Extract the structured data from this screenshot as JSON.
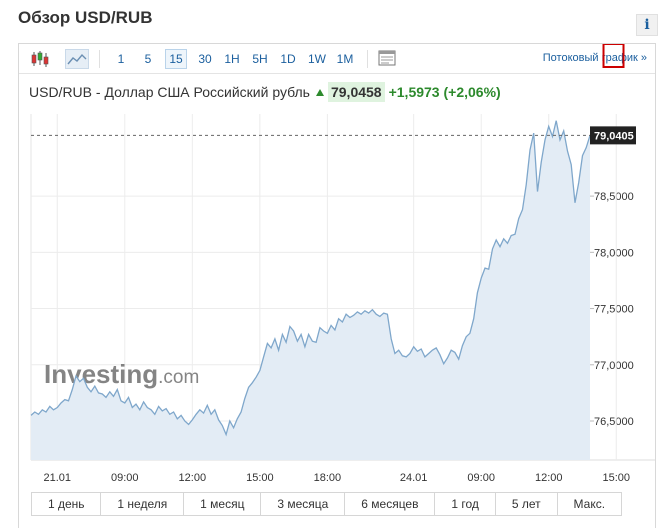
{
  "header": {
    "title": "Обзор USD/RUB"
  },
  "toolbar": {
    "intervals": [
      "1",
      "5",
      "15",
      "30",
      "1H",
      "5H",
      "1D",
      "1W",
      "1M"
    ],
    "active_interval": "15",
    "stream_link": "Потоковый график »"
  },
  "quote": {
    "name": "USD/RUB - Доллар США Российский рубль",
    "price": "79,0458",
    "change": "+1,5973 (+2,06%)"
  },
  "watermark": {
    "brand": "Investing",
    "suffix": ".com"
  },
  "ranges": [
    "1 день",
    "1 неделя",
    "1 месяц",
    "3 месяца",
    "6 месяцев",
    "1 год",
    "5 лет",
    "Макс."
  ],
  "colors": {
    "line": "#7fa7cb",
    "fill": "#e3ecf5",
    "accent_green": "#2d8a2d",
    "link": "#1b5f9e",
    "marker": "#cc0000"
  },
  "chart_data": {
    "type": "area",
    "title": "",
    "xlabel": "",
    "ylabel": "",
    "y_ticks": [
      "76,5000",
      "77,0000",
      "77,5000",
      "78,0000",
      "78,5000"
    ],
    "ylim": [
      76.26,
      79.23
    ],
    "x_ticks": [
      "21.01",
      "09:00",
      "12:00",
      "15:00",
      "18:00",
      "24.01",
      "09:00",
      "12:00",
      "15:00"
    ],
    "x_tick_index": [
      7,
      25,
      43,
      61,
      79,
      102,
      120,
      138,
      156
    ],
    "grid": true,
    "last_value_label": "79,0405",
    "last_value": 79.04,
    "highlight_index": 155,
    "values": [
      76.55,
      76.58,
      76.56,
      76.6,
      76.58,
      76.63,
      76.6,
      76.62,
      76.66,
      76.69,
      76.68,
      76.78,
      76.9,
      76.85,
      76.88,
      76.8,
      76.76,
      76.81,
      76.75,
      76.74,
      76.71,
      76.76,
      76.72,
      76.78,
      76.68,
      76.66,
      76.71,
      76.62,
      76.65,
      76.6,
      76.67,
      76.62,
      76.6,
      76.56,
      76.63,
      76.59,
      76.61,
      76.56,
      76.58,
      76.52,
      76.55,
      76.5,
      76.47,
      76.51,
      76.56,
      76.6,
      76.57,
      76.64,
      76.56,
      76.6,
      76.51,
      76.46,
      76.38,
      76.5,
      76.44,
      76.52,
      76.58,
      76.7,
      76.8,
      76.84,
      76.89,
      76.95,
      77.07,
      77.19,
      77.15,
      77.23,
      77.13,
      77.27,
      77.2,
      77.34,
      77.3,
      77.21,
      77.27,
      77.16,
      77.27,
      77.21,
      77.2,
      77.33,
      77.3,
      77.28,
      77.35,
      77.31,
      77.41,
      77.38,
      77.45,
      77.42,
      77.44,
      77.47,
      77.45,
      77.48,
      77.46,
      77.49,
      77.45,
      77.43,
      77.46,
      77.45,
      77.23,
      77.1,
      77.13,
      77.08,
      77.07,
      77.1,
      77.16,
      77.12,
      77.14,
      77.07,
      77.1,
      77.13,
      77.15,
      77.09,
      77.01,
      77.06,
      77.13,
      77.11,
      77.05,
      77.17,
      77.25,
      77.28,
      77.41,
      77.64,
      77.77,
      77.86,
      77.85,
      78.03,
      78.11,
      78.05,
      78.12,
      78.08,
      78.15,
      78.16,
      78.3,
      78.38,
      78.6,
      78.91,
      79.06,
      78.54,
      78.8,
      79.0,
      79.12,
      79.03,
      79.17,
      79.0,
      79.08,
      78.9,
      78.78,
      78.44,
      78.62,
      78.86,
      78.93,
      79.04
    ]
  }
}
